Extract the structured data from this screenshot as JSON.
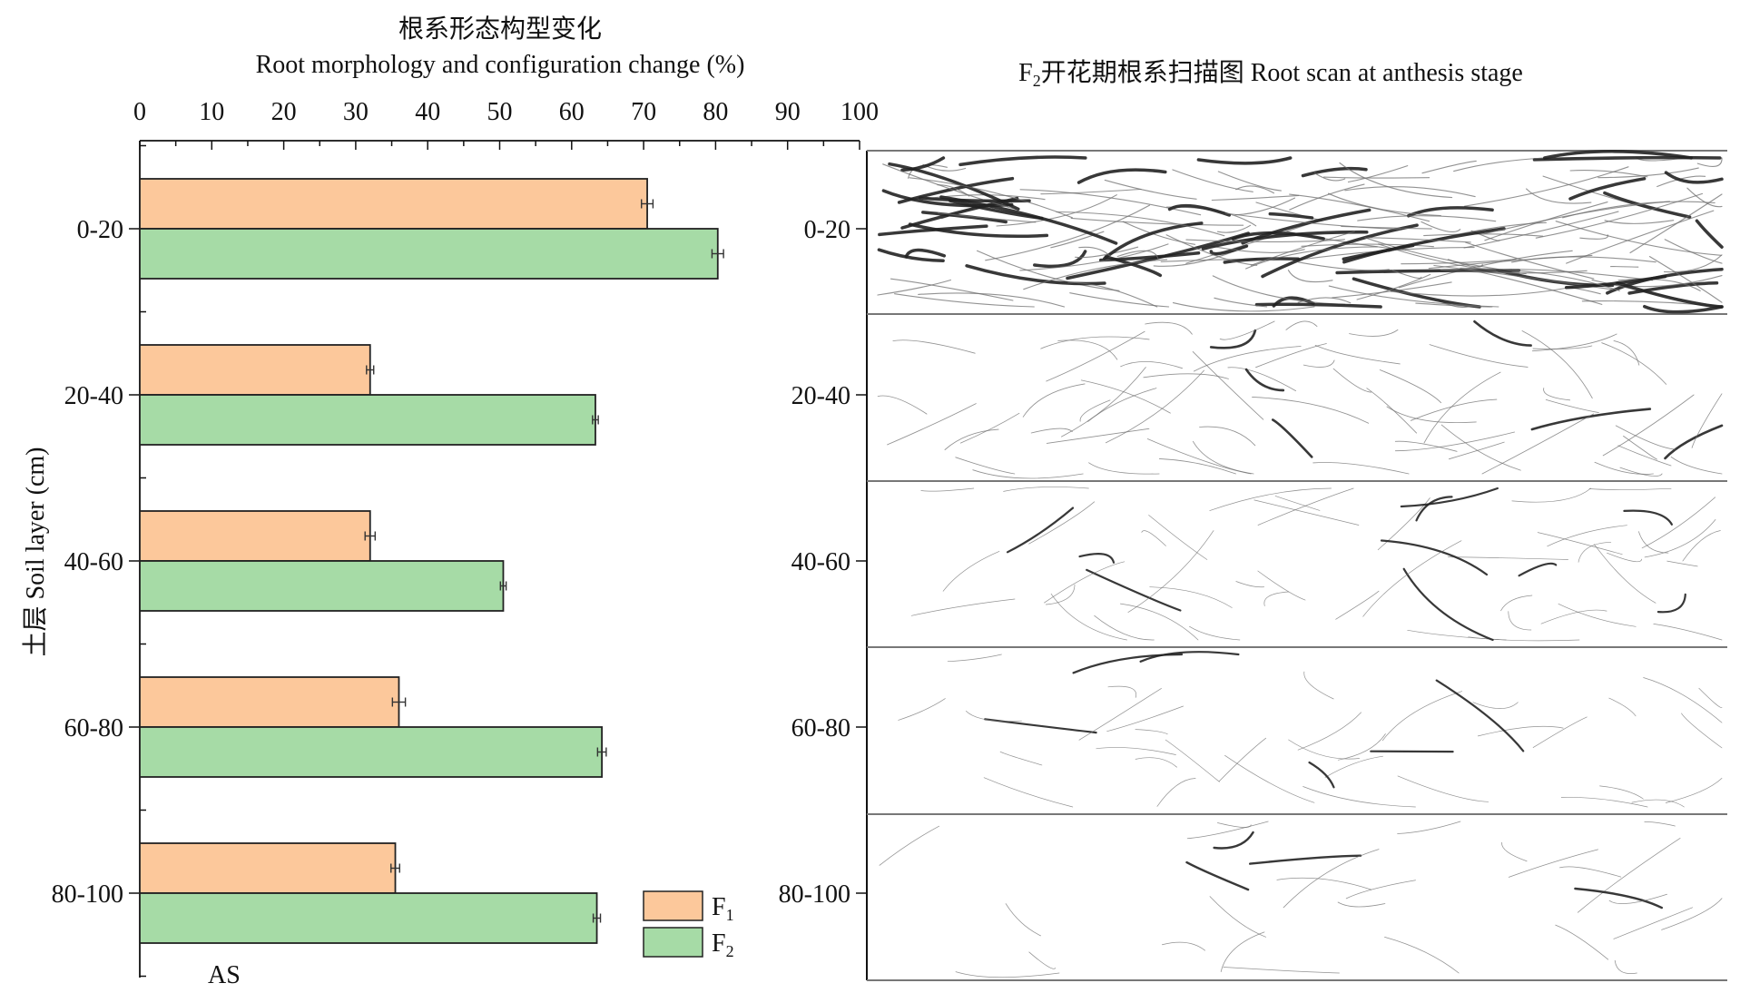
{
  "chart_data": {
    "type": "bar",
    "orientation": "horizontal",
    "title_cn": "根系形态构型变化",
    "title_en": "Root morphology and configuration change (%)",
    "ylabel": "土层 Soil layer (cm)",
    "xlim": [
      0,
      100
    ],
    "x_ticks": [
      "0",
      "10",
      "20",
      "30",
      "40",
      "50",
      "60",
      "70",
      "80",
      "90",
      "100"
    ],
    "categories": [
      "0-20",
      "20-40",
      "40-60",
      "60-80",
      "80-100"
    ],
    "series": [
      {
        "name": "F",
        "sub": "1",
        "color": "#fcc89b",
        "values": [
          70.5,
          32.0,
          32.0,
          36.0,
          35.5
        ],
        "errors": [
          0.8,
          0.5,
          0.7,
          0.9,
          0.6
        ]
      },
      {
        "name": "F",
        "sub": "2",
        "color": "#a6dba6",
        "values": [
          80.3,
          63.3,
          50.5,
          64.2,
          63.5
        ],
        "errors": [
          0.8,
          0.4,
          0.4,
          0.6,
          0.5
        ]
      }
    ],
    "panel_label": "AS",
    "legend_position": "bottom-right",
    "grid": false
  },
  "scan_panel": {
    "title_prefix": "F",
    "title_sub": "2",
    "title_text": "开花期根系扫描图 Root scan at anthesis stage",
    "row_labels": [
      "0-20",
      "20-40",
      "40-60",
      "60-80",
      "80-100"
    ]
  }
}
